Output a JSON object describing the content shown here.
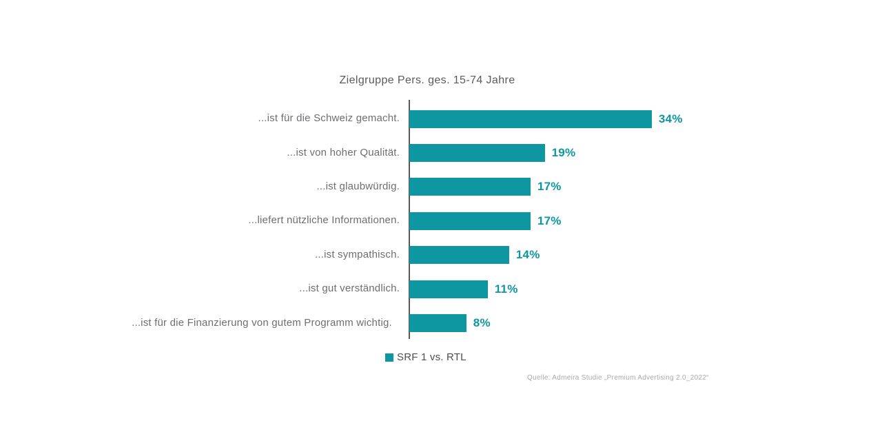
{
  "chart_data": {
    "type": "bar",
    "orientation": "horizontal",
    "title": "Zielgruppe Pers. ges. 15-74 Jahre",
    "categories": [
      "...ist für die Schweiz gemacht.",
      "...ist von hoher Qualität.",
      "...ist glaubwürdig.",
      "...liefert nützliche Informationen.",
      "...ist sympathisch.",
      "...ist gut verständlich.",
      "...ist für die Finanzierung von gutem Programm wichtig."
    ],
    "values": [
      34,
      19,
      17,
      17,
      14,
      11,
      8
    ],
    "value_suffix": "%",
    "xlim": [
      0,
      36
    ],
    "grid": false,
    "legend_position": "bottom",
    "bar_color": "#0E96A1",
    "value_label_color": "#0E96A1",
    "axis_color": "#58595B"
  },
  "legend": {
    "label": "SRF 1 vs. RTL",
    "marker_color": "#0E96A1"
  },
  "source": {
    "text": "Quelle: Admeira Studie „Premium Advertising 2.0_2022“"
  }
}
